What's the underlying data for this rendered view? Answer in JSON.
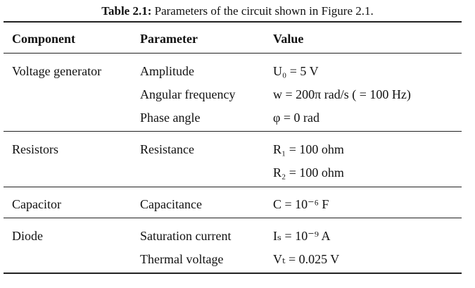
{
  "caption": {
    "label": "Table 2.1:",
    "text": " Parameters of the circuit shown in Figure 2.1."
  },
  "headers": {
    "component": "Component",
    "parameter": "Parameter",
    "value": "Value"
  },
  "rows": {
    "voltage_generator": {
      "component": "Voltage generator",
      "params": [
        {
          "parameter": "Amplitude",
          "value": "U₀ = 5 V"
        },
        {
          "parameter": "Angular frequency",
          "value": "w = 200π rad/s ( = 100 Hz)"
        },
        {
          "parameter": "Phase angle",
          "value": "φ = 0 rad"
        }
      ]
    },
    "resistors": {
      "component": "Resistors",
      "params": [
        {
          "parameter": "Resistance",
          "value": "R₁ = 100 ohm"
        },
        {
          "parameter": "",
          "value": "R₂ = 100 ohm"
        }
      ]
    },
    "capacitor": {
      "component": "Capacitor",
      "params": [
        {
          "parameter": "Capacitance",
          "value": "C = 10⁻⁶ F"
        }
      ]
    },
    "diode": {
      "component": "Diode",
      "params": [
        {
          "parameter": "Saturation current",
          "value": "Iₛ = 10⁻⁹ A"
        },
        {
          "parameter": "Thermal voltage",
          "value": "Vₜ = 0.025 V"
        }
      ]
    }
  }
}
